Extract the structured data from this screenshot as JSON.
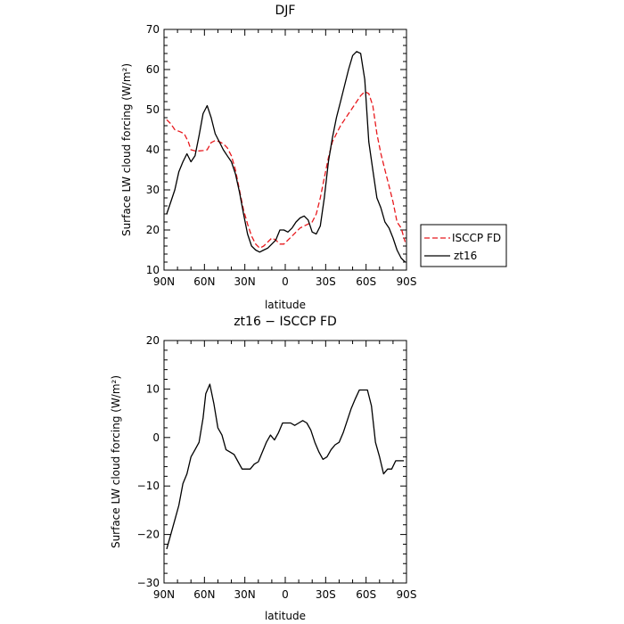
{
  "chart_data": [
    {
      "type": "line",
      "title": "DJF",
      "xlabel": "latitude",
      "ylabel": "Surface LW cloud forcing (W/m²)",
      "xlim": [
        90,
        -90
      ],
      "ylim": [
        10,
        70
      ],
      "xticks": [
        {
          "value": 90,
          "label": "90N"
        },
        {
          "value": 60,
          "label": "60N"
        },
        {
          "value": 30,
          "label": "30N"
        },
        {
          "value": 0,
          "label": "0"
        },
        {
          "value": -30,
          "label": "30S"
        },
        {
          "value": -60,
          "label": "60S"
        },
        {
          "value": -90,
          "label": "90S"
        }
      ],
      "yticks": [
        10,
        20,
        30,
        40,
        50,
        60,
        70
      ],
      "legend": "right-outside",
      "series": [
        {
          "name": "ISCCP FD",
          "color": "#e8191d",
          "dash": "dashed",
          "x": [
            88,
            85,
            82,
            78,
            75,
            72,
            70,
            67,
            64,
            61,
            58,
            55,
            52,
            49,
            46,
            43,
            40,
            37,
            34,
            31,
            28,
            25,
            22,
            19,
            16,
            13,
            10,
            7,
            4,
            1,
            -2,
            -5,
            -8,
            -11,
            -14,
            -17,
            -20,
            -23,
            -26,
            -29,
            -32,
            -35,
            -38,
            -41,
            -44,
            -47,
            -50,
            -53,
            -56,
            -59,
            -62,
            -65,
            -68,
            -71,
            -74,
            -77,
            -80,
            -83,
            -86,
            -89
          ],
          "y": [
            47.5,
            46.5,
            45,
            44.5,
            44,
            42,
            40,
            39.7,
            39.7,
            39.8,
            40,
            41.8,
            42.3,
            42,
            41.5,
            40.5,
            38.5,
            35,
            30,
            25,
            21.5,
            18.5,
            16.5,
            15.5,
            16,
            17,
            18,
            17.5,
            16.5,
            16.5,
            17.5,
            18.5,
            19.5,
            20.5,
            21,
            21.5,
            22,
            24,
            28,
            33,
            38,
            42,
            44,
            46,
            47.5,
            49,
            50.5,
            52,
            53.5,
            54.5,
            54,
            51,
            44,
            39,
            35,
            31,
            27,
            22,
            20.5,
            17
          ]
        },
        {
          "name": "zt16",
          "color": "#000000",
          "dash": "solid",
          "x": [
            88,
            85,
            82,
            79,
            76,
            73,
            70,
            67,
            64,
            61,
            58,
            55,
            52,
            49,
            46,
            43,
            40,
            37,
            34,
            31,
            28,
            25,
            22,
            19,
            16,
            13,
            10,
            7,
            4,
            1,
            -2,
            -5,
            -8,
            -11,
            -14,
            -17,
            -20,
            -23,
            -26,
            -29,
            -32,
            -35,
            -38,
            -41,
            -44,
            -47,
            -50,
            -53,
            -56,
            -59,
            -62,
            -65,
            -68,
            -71,
            -74,
            -77,
            -80,
            -83,
            -86,
            -89
          ],
          "y": [
            24,
            27,
            30,
            34.5,
            37,
            39,
            37,
            38.5,
            43.5,
            49,
            51,
            48,
            44,
            42,
            40,
            38.5,
            37,
            34,
            29.5,
            24,
            19,
            16,
            15,
            14.5,
            15,
            15.5,
            16.5,
            17.5,
            20,
            20,
            19.5,
            20.5,
            22,
            23,
            23.5,
            22.5,
            19.5,
            19,
            21,
            28,
            37,
            43,
            48,
            52,
            56,
            60,
            63.5,
            64.5,
            64,
            57.5,
            42,
            35,
            28,
            25.5,
            22,
            20.5,
            18,
            15,
            13,
            12
          ]
        }
      ]
    },
    {
      "type": "line",
      "title": "zt16 − ISCCP FD",
      "xlabel": "latitude",
      "ylabel": "Surface LW cloud forcing (W/m²)",
      "xlim": [
        90,
        -90
      ],
      "ylim": [
        -30,
        20
      ],
      "xticks": [
        {
          "value": 90,
          "label": "90N"
        },
        {
          "value": 60,
          "label": "60N"
        },
        {
          "value": 30,
          "label": "30N"
        },
        {
          "value": 0,
          "label": "0"
        },
        {
          "value": -30,
          "label": "30S"
        },
        {
          "value": -60,
          "label": "60S"
        },
        {
          "value": -90,
          "label": "90S"
        }
      ],
      "yticks": [
        -30,
        -20,
        -10,
        0,
        10,
        20
      ],
      "series": [
        {
          "color": "#000000",
          "dash": "solid",
          "x": [
            88,
            85,
            82,
            79,
            76,
            73,
            70,
            67,
            64,
            61,
            59,
            56,
            53,
            50,
            47,
            44,
            41,
            38,
            35,
            32,
            29,
            26,
            23,
            20,
            17,
            14,
            11,
            8,
            5,
            2,
            -1,
            -4,
            -7,
            -10,
            -13,
            -16,
            -19,
            -22,
            -25,
            -28,
            -31,
            -34,
            -37,
            -40,
            -43,
            -46,
            -49,
            -52,
            -55,
            -58,
            -61,
            -64,
            -67,
            -70,
            -73,
            -76,
            -79,
            -82,
            -85,
            -88
          ],
          "y": [
            -23,
            -20,
            -17,
            -14,
            -9.5,
            -7.5,
            -4,
            -2.5,
            -1,
            4,
            9,
            11,
            7,
            2,
            0.5,
            -2.5,
            -3,
            -3.5,
            -5,
            -6.5,
            -6.5,
            -6.5,
            -5.5,
            -5,
            -3,
            -1,
            0.5,
            -0.5,
            1,
            3,
            3,
            3,
            2.5,
            3,
            3.5,
            3,
            1.5,
            -1,
            -3,
            -4.5,
            -4,
            -2.5,
            -1.5,
            -1,
            1,
            3.5,
            6,
            8,
            9.8,
            9.8,
            9.8,
            6.5,
            -1,
            -4,
            -7.5,
            -6.5,
            -6.5,
            -4.8,
            -4.8,
            -4.8
          ]
        }
      ]
    }
  ]
}
